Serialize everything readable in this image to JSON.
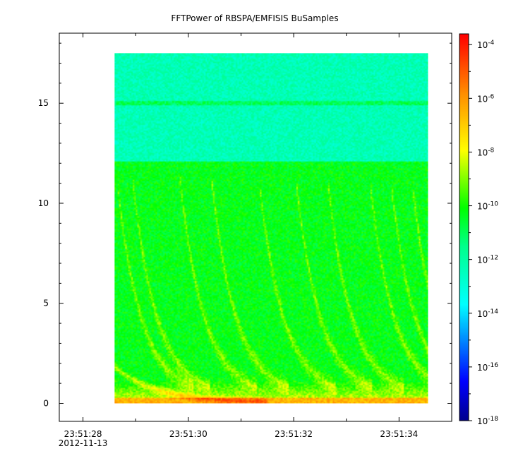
{
  "chart_data": {
    "type": "heatmap",
    "title": "FFTPower of RBSPA/EMFISIS  BuSamples",
    "xlabel": "",
    "ylabel": "",
    "x_ticks": [
      {
        "value": "23:51:28",
        "sub": "2012-11-13"
      },
      {
        "value": "23:51:30",
        "sub": ""
      },
      {
        "value": "23:51:32",
        "sub": ""
      },
      {
        "value": "23:51:34",
        "sub": ""
      }
    ],
    "x_range_seconds": [
      27.55,
      35.0
    ],
    "x_data_range_seconds": [
      28.6,
      34.55
    ],
    "y_ticks": [
      "0",
      "5",
      "10",
      "15"
    ],
    "y_range": [
      -0.9,
      18.5
    ],
    "y_data_range": [
      0,
      17.5
    ],
    "colorbar": {
      "scale": "log",
      "base": "10",
      "exponents": [
        "-4",
        "-6",
        "-8",
        "-10",
        "-12",
        "-14",
        "-16",
        "-18"
      ],
      "range_log10": [
        -18,
        -3.6
      ]
    },
    "colors": {
      "high": "#ff0000",
      "mid_high": "#ffff00",
      "mid": "#00ff00",
      "low": "#00ffff",
      "lowest": "#00008f"
    },
    "features": [
      {
        "name": "band",
        "y_low": 0,
        "y_high": 12.1,
        "level_log10": -10.3
      },
      {
        "name": "upper band",
        "y_low": 12.1,
        "y_high": 17.5,
        "level_log10": -12.3
      },
      {
        "name": "line",
        "y": 15.0,
        "level_log10": -11.0
      },
      {
        "name": "low-frequency region",
        "y_low": 0,
        "y_high": 1.2,
        "level_log10": -8.0
      }
    ]
  }
}
